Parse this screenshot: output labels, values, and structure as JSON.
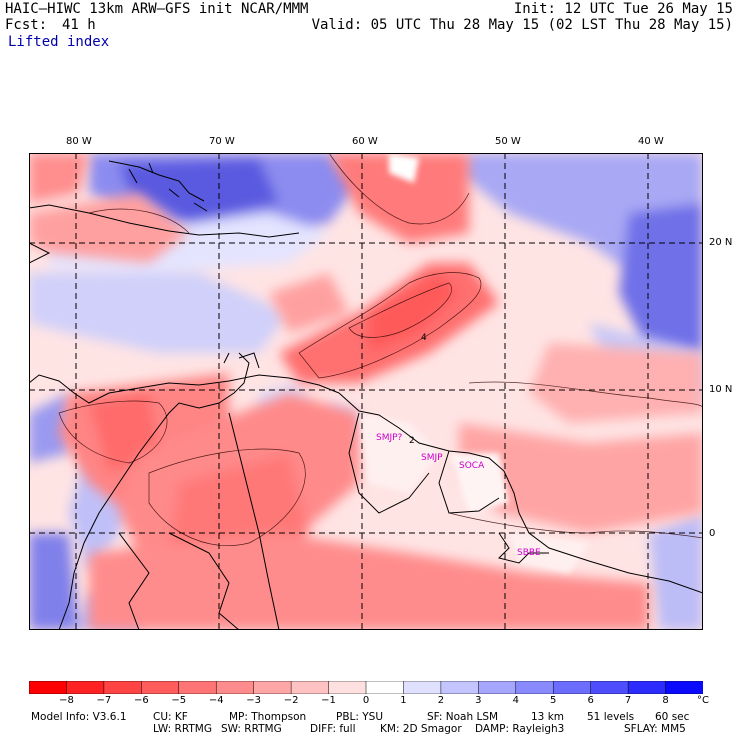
{
  "header": {
    "model_line": "HAIC–HIWC 13km ARW–GFS init   NCAR/MMM",
    "fcst_label": "Fcst:",
    "fcst_value": "41 h",
    "init_line": "Init: 12 UTC Tue 26 May 15",
    "valid_line": "Valid: 05 UTC Thu 28 May 15 (02 LST Thu 28 May 15)",
    "field_name": "Lifted index"
  },
  "map": {
    "lon_labels": [
      "80 W",
      "70 W",
      "60 W",
      "50 W",
      "40 W"
    ],
    "lat_labels": [
      "20 N",
      "10 N",
      "0"
    ],
    "contour_labels": [
      "4",
      "2"
    ],
    "stations": [
      "SMJP?",
      "SMJP",
      "SOCA",
      "SBBE"
    ],
    "station_color": "#cc00cc",
    "field_colors": {
      "negative": "#ff5050",
      "neutral": "#ffffff",
      "positive": "#6a6ae8"
    }
  },
  "colorbar": {
    "ticks": [
      "−8",
      "−7",
      "−6",
      "−5",
      "−4",
      "−3",
      "−2",
      "−1",
      "0",
      "1",
      "2",
      "3",
      "4",
      "5",
      "6",
      "7",
      "8"
    ],
    "unit": "°C",
    "colors": [
      "#ff0000",
      "#ff2222",
      "#ff4444",
      "#ff5c5c",
      "#ff7474",
      "#ff8c8c",
      "#ffa6a6",
      "#ffc2c2",
      "#ffe0e0",
      "#ffffff",
      "#e0e0ff",
      "#c4c4ff",
      "#a6a6ff",
      "#8a8aff",
      "#6c6cff",
      "#4e4eff",
      "#2c2cff",
      "#0a0aff"
    ]
  },
  "footer": {
    "row1": [
      "Model Info: V3.6.1",
      "CU: KF",
      "MP: Thompson",
      "PBL: YSU",
      "SF: Noah LSM",
      "13 km",
      "51 levels",
      "60 sec"
    ],
    "row2": [
      "LW: RRTMG",
      "SW: RRTMG",
      "DIFF: full",
      "KM: 2D Smagor",
      "DAMP: Rayleigh3",
      "SFLAY: MM5"
    ]
  }
}
